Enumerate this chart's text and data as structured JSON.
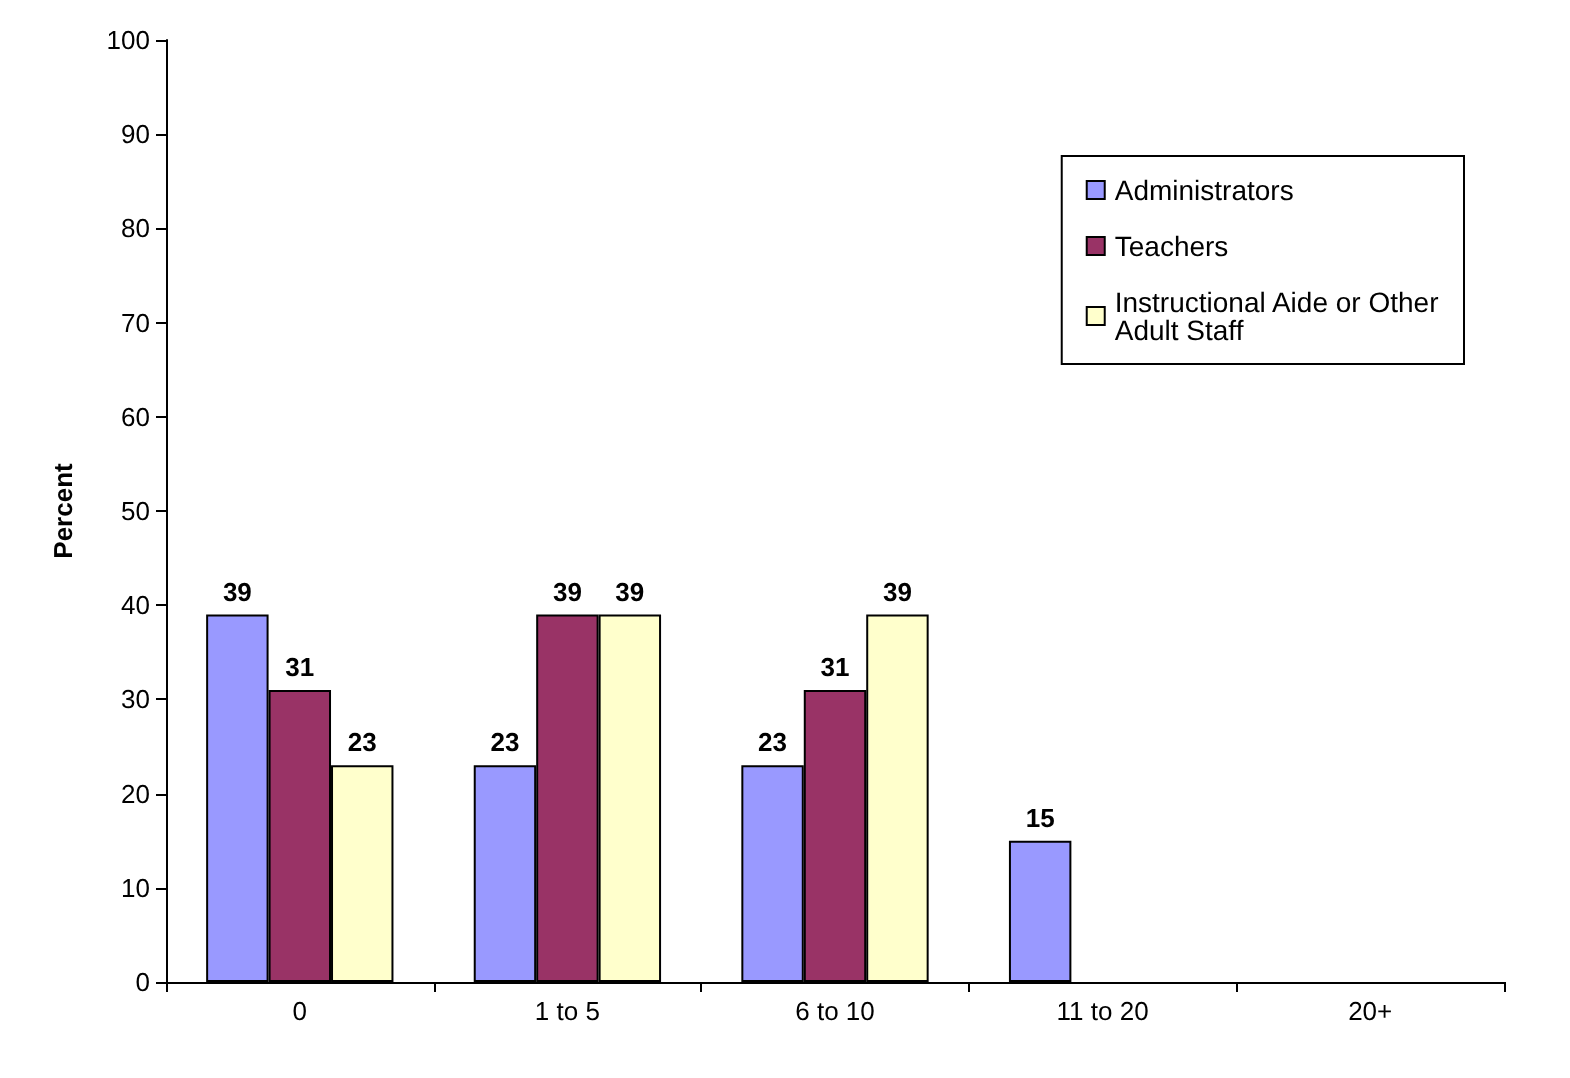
{
  "chart_data": {
    "type": "bar",
    "ylabel": "Percent",
    "categories": [
      "0",
      "1 to 5",
      "6 to 10",
      "11 to 20",
      "20+"
    ],
    "series": [
      {
        "name": "Administrators",
        "color": "#9999ff",
        "values": [
          39,
          23,
          23,
          15,
          null
        ],
        "value_labels": [
          "39",
          "23",
          "23",
          "15",
          null
        ]
      },
      {
        "name": "Teachers",
        "color": "#993366",
        "values": [
          31,
          39,
          31,
          null,
          null
        ],
        "value_labels": [
          "31",
          "39",
          "31",
          null,
          null
        ]
      },
      {
        "name": "Instructional Aide or Other Adult Staff",
        "color": "#ffffcc",
        "values": [
          23,
          39,
          39,
          null,
          null
        ],
        "value_labels": [
          "23",
          "39",
          "39",
          null,
          null
        ]
      }
    ],
    "ylim": [
      0,
      100
    ],
    "yticks": [
      0,
      10,
      20,
      30,
      40,
      50,
      60,
      70,
      80,
      90,
      100
    ],
    "grid": false,
    "legend": "top right"
  }
}
